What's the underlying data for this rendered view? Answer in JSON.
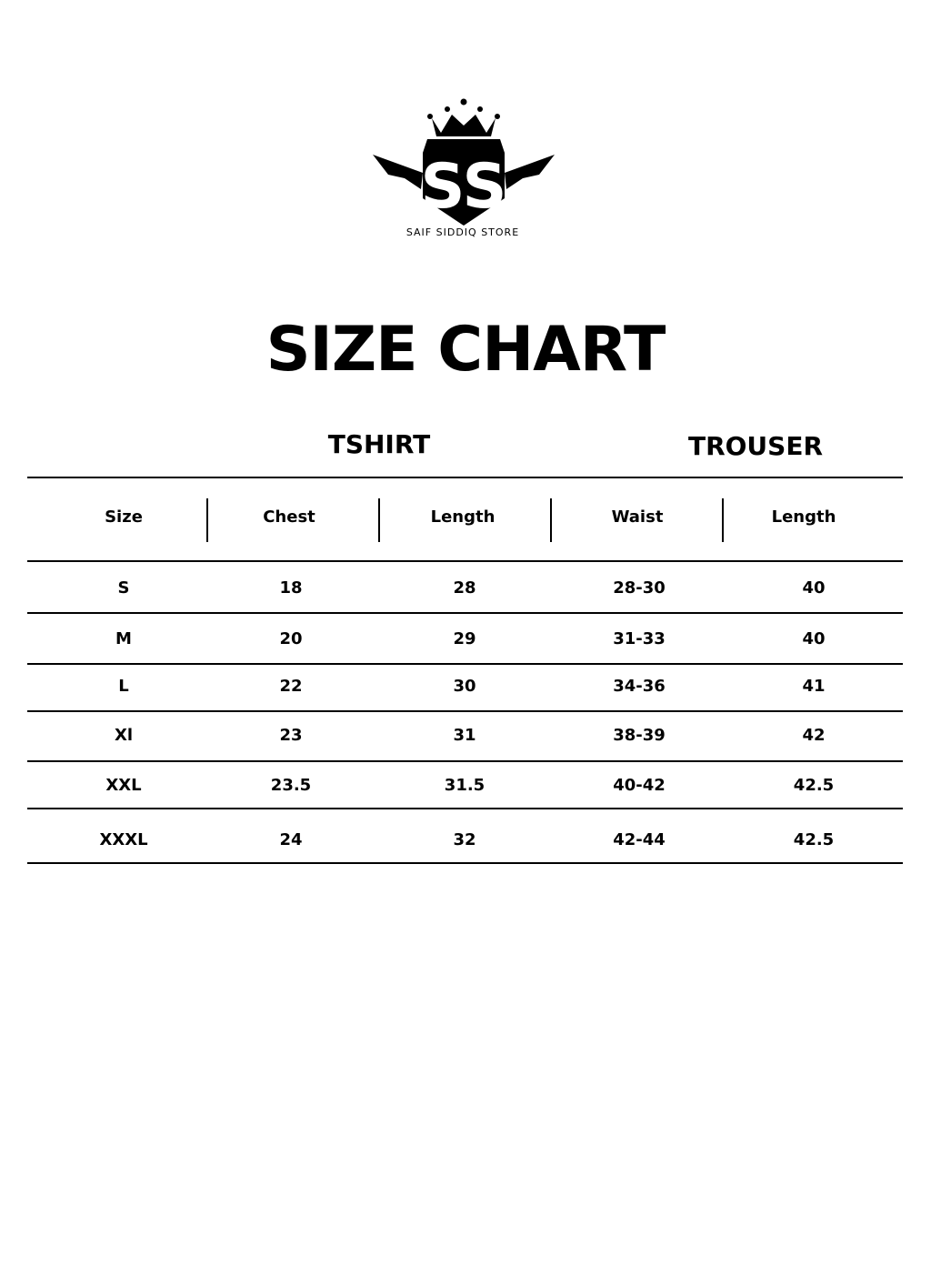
{
  "brand": {
    "name": "SAIF SIDDIQ STORE",
    "monogram": "SS"
  },
  "title": "SIZE CHART",
  "sections": {
    "tshirt": "TSHIRT",
    "trouser": "TROUSER"
  },
  "table": {
    "headers": [
      "Size",
      "Chest",
      "Length",
      "Waist",
      "Length"
    ],
    "rows": [
      [
        "S",
        "18",
        "28",
        "28-30",
        "40"
      ],
      [
        "M",
        "20",
        "29",
        "31-33",
        "40"
      ],
      [
        "L",
        "22",
        "30",
        "34-36",
        "41"
      ],
      [
        "Xl",
        "23",
        "31",
        "38-39",
        "42"
      ],
      [
        "XXL",
        "23.5",
        "31.5",
        "40-42",
        "42.5"
      ],
      [
        "XXXL",
        "24",
        "32",
        "42-44",
        "42.5"
      ]
    ]
  }
}
